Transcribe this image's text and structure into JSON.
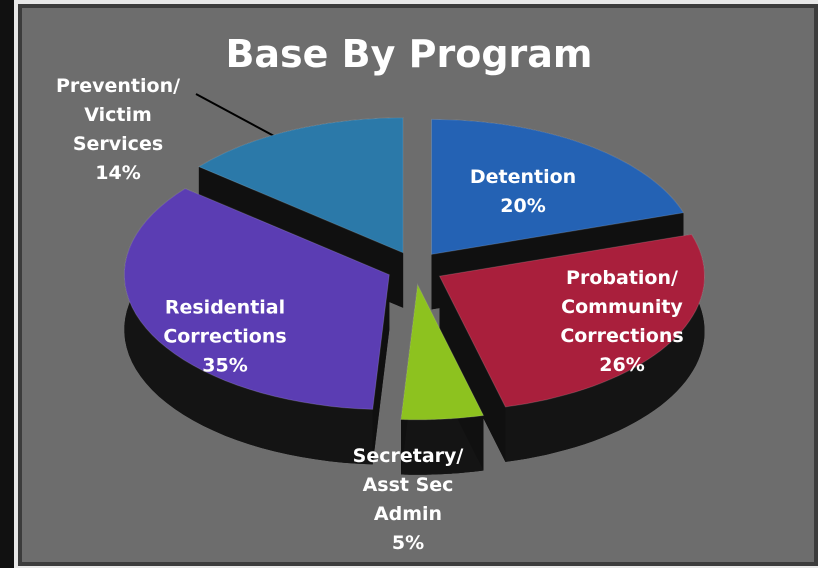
{
  "chart_data": {
    "type": "pie",
    "title": "Base By Program",
    "categories": [
      "Detention",
      "Probation/ Community Corrections",
      "Secretary/ Asst Sec Admin",
      "Residential Corrections",
      "Prevention/ Victim Services"
    ],
    "values": [
      20,
      26,
      5,
      35,
      14
    ],
    "value_labels": [
      "20%",
      "26%",
      "5%",
      "35%",
      "14%"
    ],
    "colors": [
      "#2462b4",
      "#a91f3c",
      "#8dc21f",
      "#5b3db3",
      "#2b79a9"
    ]
  }
}
